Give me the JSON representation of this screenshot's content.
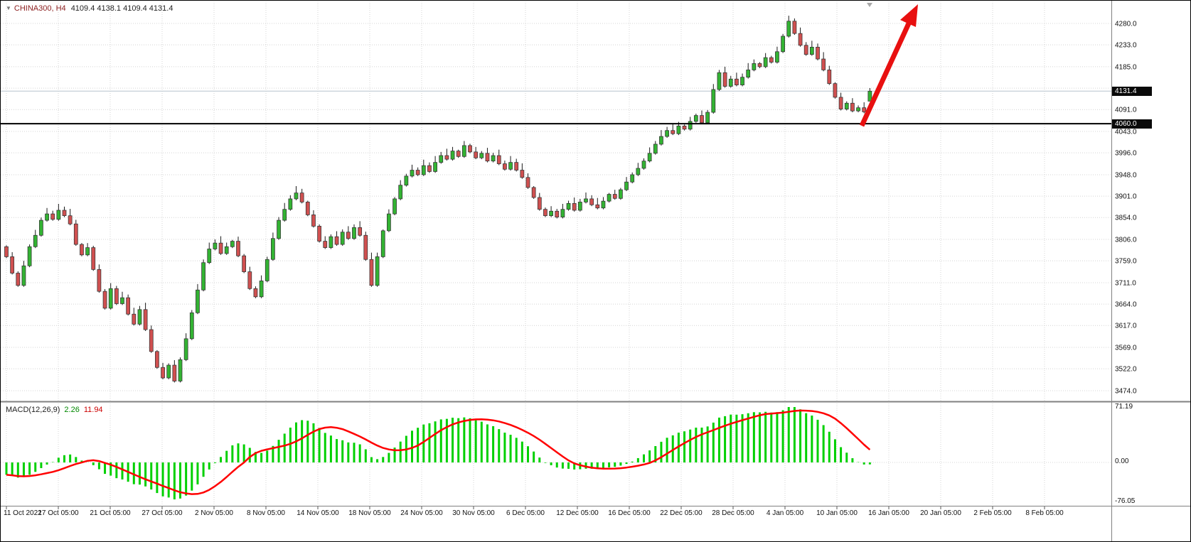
{
  "header": {
    "dropdown_icon": "▼",
    "symbol_period": "CHINA300, H4",
    "ohlc": "4109.4 4138.1 4109.4 4131.4"
  },
  "macd": {
    "label": "MACD(12,26,9)",
    "value_main": "2.26",
    "value_signal": "11.94",
    "axis": {
      "max": "71.19",
      "zero": "0.00",
      "min": "-76.05"
    }
  },
  "price_axis": {
    "current_badge": "4131.4",
    "hline_badge": "4060.0"
  },
  "colors": {
    "bull": "#33b333",
    "bear": "#d05050",
    "wick": "#1a1a1a",
    "candle_border": "#333333",
    "macd_histogram": "#00d000",
    "macd_signal": "#ff0000",
    "arrow": "#e81010",
    "support_line": "#000000",
    "current_price_line": "#b7c3cd",
    "grid": "#d4d4d4"
  },
  "chart_data": {
    "type": "candlestick",
    "title": "CHINA300, H4",
    "symbol": "CHINA300",
    "timeframe": "H4",
    "y_range": [
      3474.0,
      4280.0
    ],
    "current_price": 4131.4,
    "support_line_level": 4060.0,
    "first_open": 3790,
    "last_candle": {
      "open": 4109.4,
      "high": 4138.1,
      "low": 4109.4,
      "close": 4131.4
    },
    "closes": [
      3768,
      3732,
      3705,
      3748,
      3790,
      3815,
      3848,
      3862,
      3850,
      3870,
      3858,
      3840,
      3795,
      3772,
      3788,
      3740,
      3692,
      3655,
      3698,
      3665,
      3678,
      3642,
      3620,
      3652,
      3608,
      3560,
      3525,
      3502,
      3530,
      3495,
      3542,
      3588,
      3645,
      3695,
      3755,
      3785,
      3798,
      3775,
      3790,
      3802,
      3770,
      3735,
      3698,
      3680,
      3715,
      3762,
      3808,
      3848,
      3872,
      3895,
      3908,
      3888,
      3860,
      3835,
      3802,
      3788,
      3812,
      3795,
      3822,
      3808,
      3832,
      3815,
      3762,
      3705,
      3768,
      3825,
      3862,
      3895,
      3925,
      3945,
      3958,
      3948,
      3968,
      3955,
      3975,
      3990,
      3982,
      4000,
      3988,
      4012,
      3998,
      3985,
      3995,
      3978,
      3990,
      3972,
      3960,
      3975,
      3958,
      3942,
      3920,
      3898,
      3872,
      3858,
      3868,
      3855,
      3872,
      3885,
      3870,
      3888,
      3895,
      3882,
      3875,
      3890,
      3905,
      3896,
      3915,
      3932,
      3948,
      3962,
      3978,
      3995,
      4015,
      4032,
      4045,
      4038,
      4055,
      4048,
      4065,
      4078,
      4062,
      4085,
      4135,
      4172,
      4142,
      4158,
      4145,
      4162,
      4178,
      4192,
      4185,
      4205,
      4195,
      4218,
      4252,
      4285,
      4258,
      4232,
      4212,
      4228,
      4202,
      4178,
      4148,
      4118,
      4092,
      4105,
      4088,
      4095,
      4086,
      4131.4
    ],
    "x_tick_labels": [
      "11 Oct 2022",
      "17 Oct 05:00",
      "21 Oct 05:00",
      "27 Oct 05:00",
      "2 Nov 05:00",
      "8 Nov 05:00",
      "14 Nov 05:00",
      "18 Nov 05:00",
      "24 Nov 05:00",
      "30 Nov 05:00",
      "6 Dec 05:00",
      "12 Dec 05:00",
      "16 Dec 05:00",
      "22 Dec 05:00",
      "28 Dec 05:00",
      "4 Jan 05:00",
      "10 Jan 05:00",
      "16 Jan 05:00",
      "20 Jan 05:00",
      "2 Feb 05:00",
      "8 Feb 05:00"
    ],
    "y_tick_labels": [
      "4280.0",
      "4233.0",
      "4185.0",
      "4091.0",
      "4043.0",
      "3996.0",
      "3948.0",
      "3901.0",
      "3854.0",
      "3806.0",
      "3759.0",
      "3711.0",
      "3664.0",
      "3617.0",
      "3569.0",
      "3522.0",
      "3474.0"
    ],
    "y_grid_levels": [
      4280,
      4233,
      4185,
      4138,
      4091,
      4043,
      3996,
      3948,
      3901,
      3854,
      3806,
      3759,
      3711,
      3664,
      3617,
      3569,
      3522,
      3474
    ],
    "annotations": [
      {
        "type": "up-arrow",
        "meaning": "bullish-projection"
      },
      {
        "type": "horizontal-line",
        "level": 4060.0
      }
    ],
    "indicator": {
      "name": "MACD",
      "fast": 12,
      "slow": 26,
      "signal": 9,
      "last_main": 2.26,
      "last_signal": 11.94,
      "y_ticks": [
        71.19,
        0.0,
        -76.05
      ]
    }
  }
}
